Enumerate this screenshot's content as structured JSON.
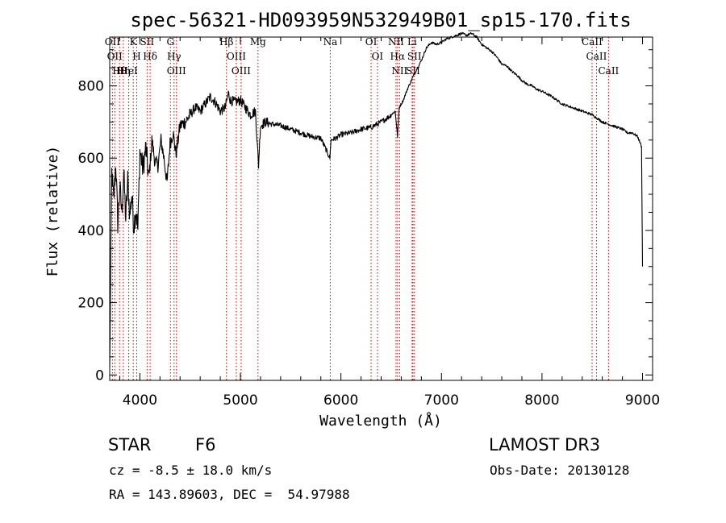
{
  "chart_data": {
    "type": "line",
    "title": "spec-56321-HD093959N532949B01_sp15-170.fits",
    "xlabel": "Wavelength (Å)",
    "ylabel": "Flux (relative)",
    "xlim": [
      3700,
      9100
    ],
    "ylim": [
      -15,
      935
    ],
    "xticks": [
      4000,
      5000,
      6000,
      7000,
      8000,
      9000
    ],
    "yticks": [
      0,
      200,
      400,
      600,
      800
    ],
    "grid": false,
    "series": [
      {
        "name": "spectrum",
        "x": [
          3700,
          3720,
          3740,
          3760,
          3780,
          3800,
          3820,
          3840,
          3860,
          3880,
          3900,
          3920,
          3940,
          3960,
          3980,
          4000,
          4030,
          4060,
          4090,
          4120,
          4150,
          4180,
          4210,
          4240,
          4270,
          4300,
          4330,
          4360,
          4400,
          4450,
          4500,
          4550,
          4600,
          4650,
          4700,
          4750,
          4800,
          4850,
          4880,
          4900,
          4950,
          5000,
          5050,
          5100,
          5150,
          5180,
          5200,
          5250,
          5300,
          5400,
          5500,
          5600,
          5700,
          5800,
          5890,
          5900,
          5950,
          6000,
          6100,
          6200,
          6300,
          6400,
          6480,
          6540,
          6563,
          6580,
          6620,
          6660,
          6700,
          6760,
          6800,
          6850,
          6900,
          6950,
          7000,
          7050,
          7100,
          7150,
          7200,
          7250,
          7300,
          7350,
          7400,
          7450,
          7500,
          7550,
          7600,
          7650,
          7700,
          7750,
          7800,
          7850,
          7900,
          7950,
          8000,
          8100,
          8200,
          8300,
          8400,
          8500,
          8600,
          8700,
          8800,
          8850,
          8900,
          8950,
          8980,
          8990,
          9000
        ],
        "y": [
          20,
          560,
          480,
          590,
          420,
          520,
          450,
          560,
          430,
          540,
          440,
          500,
          410,
          460,
          400,
          620,
          570,
          630,
          540,
          650,
          590,
          580,
          650,
          600,
          530,
          640,
          670,
          610,
          690,
          700,
          720,
          740,
          730,
          750,
          770,
          755,
          730,
          740,
          780,
          760,
          755,
          760,
          740,
          720,
          730,
          580,
          690,
          700,
          695,
          690,
          680,
          670,
          660,
          655,
          600,
          650,
          655,
          665,
          670,
          680,
          685,
          700,
          715,
          730,
          660,
          740,
          760,
          790,
          815,
          850,
          870,
          905,
          920,
          915,
          920,
          930,
          935,
          940,
          945,
          940,
          945,
          935,
          915,
          905,
          895,
          880,
          860,
          855,
          840,
          830,
          815,
          805,
          800,
          790,
          785,
          770,
          750,
          740,
          730,
          720,
          700,
          690,
          680,
          670,
          670,
          660,
          640,
          630,
          300
        ]
      }
    ],
    "line_ids": [
      {
        "x": 3727,
        "label": "OII"
      },
      {
        "x": 3750,
        "label": "OII"
      },
      {
        "x": 3798,
        "label": "Hθ"
      },
      {
        "x": 3835,
        "label": "Hη"
      },
      {
        "x": 3889,
        "label": "HeI"
      },
      {
        "x": 3934,
        "label": "K"
      },
      {
        "x": 3969,
        "label": "H"
      },
      {
        "x": 4072,
        "label": "SII"
      },
      {
        "x": 4102,
        "label": "Hδ"
      },
      {
        "x": 4304,
        "label": "G"
      },
      {
        "x": 4340,
        "label": "Hγ"
      },
      {
        "x": 4364,
        "label": "OIII"
      },
      {
        "x": 4861,
        "label": "Hβ"
      },
      {
        "x": 4959,
        "label": "OIII"
      },
      {
        "x": 5007,
        "label": "OIII"
      },
      {
        "x": 5175,
        "label": "Mg"
      },
      {
        "x": 5894,
        "label": "Na"
      },
      {
        "x": 6300,
        "label": "OI"
      },
      {
        "x": 6363,
        "label": "OI"
      },
      {
        "x": 6548,
        "label": "NII"
      },
      {
        "x": 6563,
        "label": "Hα"
      },
      {
        "x": 6583,
        "label": "NII"
      },
      {
        "x": 6708,
        "label": "Li"
      },
      {
        "x": 6717,
        "label": "SII"
      },
      {
        "x": 6731,
        "label": "SII"
      },
      {
        "x": 8498,
        "label": "CaII"
      },
      {
        "x": 8542,
        "label": "CaII"
      },
      {
        "x": 8662,
        "label": "CaII"
      }
    ]
  },
  "info": {
    "object_class": "STAR",
    "subclass": "F6",
    "survey": "LAMOST DR3",
    "redshift": "cz = -8.5 ± 18.0 km/s",
    "obs_date": "Obs-Date: 20130128",
    "coords": "RA = 143.89603, DEC =  54.97988"
  },
  "colors": {
    "line_marker": "#cc0000",
    "spectrum": "#000000",
    "axes": "#000000"
  }
}
